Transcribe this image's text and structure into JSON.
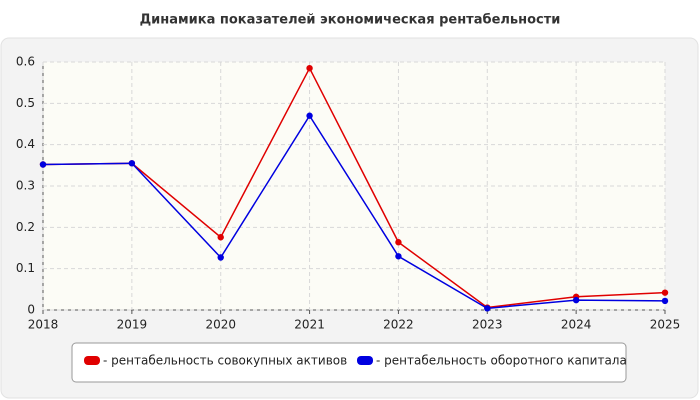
{
  "chart_data": {
    "type": "line",
    "title": "Динамика показателей экономическая рентабельности",
    "x": [
      2018,
      2019,
      2020,
      2021,
      2022,
      2023,
      2024,
      2025
    ],
    "series": [
      {
        "name": "- рентабельность совокупных активов",
        "color": "#e00000",
        "values": [
          0.352,
          0.355,
          0.176,
          0.585,
          0.164,
          0.006,
          0.032,
          0.042
        ]
      },
      {
        "name": "- рентабельность оборотного капитала",
        "color": "#0000e0",
        "values": [
          0.352,
          0.355,
          0.127,
          0.47,
          0.13,
          0.004,
          0.024,
          0.022
        ]
      }
    ],
    "xlim": [
      2018,
      2025
    ],
    "xticks": [
      2018,
      2019,
      2020,
      2021,
      2022,
      2023,
      2024,
      2025
    ],
    "ylim": [
      0,
      0.6
    ],
    "yticks": [
      0,
      0.1,
      0.2,
      0.3,
      0.4,
      0.5,
      0.6
    ],
    "grid": true,
    "legend": "bottom"
  }
}
